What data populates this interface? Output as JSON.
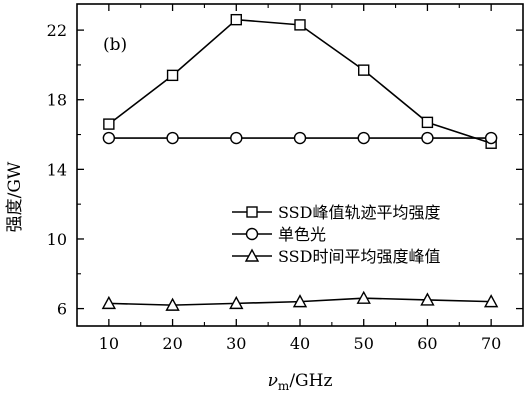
{
  "chart_data": {
    "type": "line",
    "panel_label": "(b)",
    "xlabel": "νm/GHz",
    "xlabel_var": "ν",
    "xlabel_sub": "m",
    "xlabel_unit": "/GHz",
    "ylabel": "强度/GW",
    "xlim": [
      5,
      75
    ],
    "ylim": [
      5,
      23.5
    ],
    "xticks": [
      10,
      20,
      30,
      40,
      50,
      60,
      70
    ],
    "yticks": [
      6,
      10,
      14,
      18,
      22
    ],
    "grid": false,
    "legend_position": "middle-right",
    "x": [
      10,
      20,
      30,
      40,
      50,
      60,
      70
    ],
    "series": [
      {
        "name": "SSD峰值轨迹平均强度",
        "marker": "square",
        "values": [
          16.6,
          19.4,
          22.6,
          22.3,
          19.7,
          16.7,
          15.5
        ]
      },
      {
        "name": "单色光",
        "marker": "circle",
        "values": [
          15.8,
          15.8,
          15.8,
          15.8,
          15.8,
          15.8,
          15.8
        ]
      },
      {
        "name": "SSD时间平均强度峰值",
        "marker": "triangle",
        "values": [
          6.3,
          6.2,
          6.3,
          6.4,
          6.6,
          6.5,
          6.4
        ]
      }
    ]
  }
}
